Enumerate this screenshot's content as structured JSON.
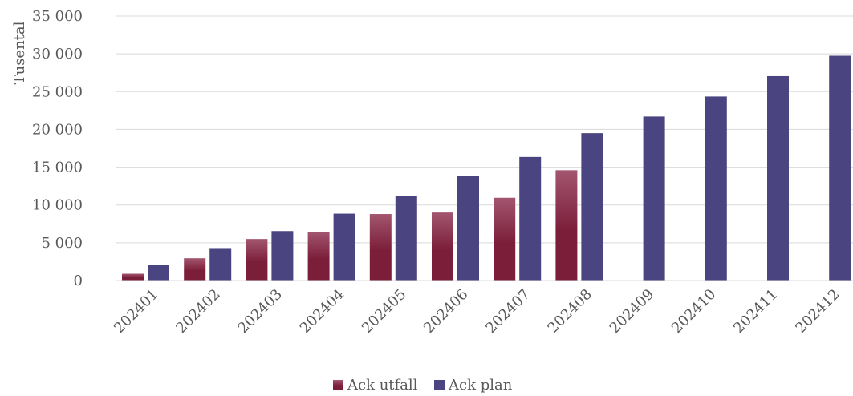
{
  "chart_data": {
    "type": "bar",
    "categories": [
      "202401",
      "202402",
      "202403",
      "202404",
      "202405",
      "202406",
      "202407",
      "202408",
      "202409",
      "202410",
      "202411",
      "202412"
    ],
    "series": [
      {
        "name": "Ack utfall",
        "color": "#7b1e3a",
        "color_light": "#a3566f",
        "values": [
          900,
          2950,
          5500,
          6450,
          8800,
          9000,
          10950,
          14600,
          null,
          null,
          null,
          null
        ]
      },
      {
        "name": "Ack plan",
        "color": "#4a4480",
        "values": [
          2050,
          4300,
          6550,
          8850,
          11150,
          13800,
          16350,
          19500,
          21700,
          24350,
          27050,
          29750
        ]
      }
    ],
    "ylabel": "Tusental",
    "ylim": [
      0,
      35000
    ],
    "yticks": [
      0,
      5000,
      10000,
      15000,
      20000,
      25000,
      30000,
      35000
    ],
    "ytick_labels": [
      "0",
      "5 000",
      "10 000",
      "15 000",
      "20 000",
      "25 000",
      "30 000",
      "35 000"
    ],
    "grid": true,
    "legend_position": "bottom"
  }
}
